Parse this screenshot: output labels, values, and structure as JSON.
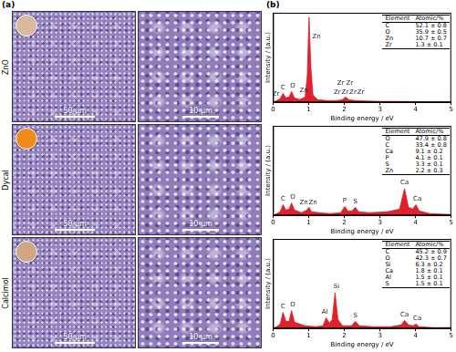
{
  "panel_labels": [
    "(a)",
    "(b)"
  ],
  "sem": [
    {
      "name": "ZnO",
      "scale_bars": [
        "50 μm",
        "10 μm"
      ]
    },
    {
      "name": "Dycal",
      "scale_bars": [
        "50 μm",
        "10 μm"
      ]
    },
    {
      "name": "Calcimol",
      "scale_bars": [
        "50 μm",
        "10 μm"
      ]
    }
  ],
  "chart_data": [
    {
      "type": "line",
      "x_label": "Binding energy / eV",
      "y_label": "Intensity / (a.u.)",
      "x": [
        0,
        0.1,
        0.2,
        0.28,
        0.36,
        0.45,
        0.52,
        0.6,
        0.75,
        0.9,
        0.96,
        1.01,
        1.06,
        1.12,
        1.25,
        1.5,
        1.8,
        1.95,
        2.04,
        2.12,
        2.3,
        2.6,
        3,
        3.5,
        4,
        4.5,
        5
      ],
      "values": [
        0,
        2,
        4,
        10,
        5,
        6,
        12,
        5,
        3,
        6,
        30,
        95,
        40,
        8,
        3,
        2,
        2,
        3,
        6,
        3,
        2,
        1.5,
        1,
        1,
        0.8,
        0.5,
        0.5
      ],
      "color": "#e0202a",
      "marker": "none",
      "grid": false,
      "tick_labels": "x",
      "xlim": [
        0,
        5
      ],
      "xticks": [
        0,
        1,
        2,
        3,
        4,
        5
      ],
      "ylim": [
        0,
        100
      ],
      "annotations": [
        {
          "text": "Zr",
          "x": 0.08,
          "y": 6
        },
        {
          "text": "C",
          "x": 0.28,
          "y": 13
        },
        {
          "text": "O",
          "x": 0.55,
          "y": 15
        },
        {
          "text": "Zn",
          "x": 0.86,
          "y": 10
        },
        {
          "text": "Zn",
          "x": 1.22,
          "y": 70
        },
        {
          "text": "Zr",
          "x": 1.9,
          "y": 18
        },
        {
          "text": "Zr",
          "x": 2.15,
          "y": 18
        },
        {
          "text": "Zr",
          "x": 1.8,
          "y": 8
        },
        {
          "text": "Zr",
          "x": 2.02,
          "y": 8
        },
        {
          "text": "Zr",
          "x": 2.24,
          "y": 8
        },
        {
          "text": "Zr",
          "x": 2.46,
          "y": 8
        }
      ],
      "table": {
        "header": [
          "Element",
          "Atomic/%"
        ],
        "rows": [
          [
            "C",
            "52.1 ± 0.8"
          ],
          [
            "O",
            "35.9 ± 0.5"
          ],
          [
            "Zn",
            "10.7 ± 0.7"
          ],
          [
            "Zr",
            "1.3 ± 0.1"
          ]
        ]
      }
    },
    {
      "type": "line",
      "x_label": "Binding energy / eV",
      "y_label": "Intensity / (a.u.)",
      "x": [
        0,
        0.1,
        0.2,
        0.28,
        0.36,
        0.45,
        0.52,
        0.6,
        0.8,
        0.95,
        1.01,
        1.08,
        1.3,
        1.6,
        1.9,
        2.01,
        2.1,
        2.22,
        2.31,
        2.4,
        2.7,
        3.2,
        3.55,
        3.69,
        3.8,
        3.92,
        4.01,
        4.1,
        4.4,
        5
      ],
      "values": [
        0,
        2,
        4,
        12,
        6,
        7,
        14,
        6,
        3,
        6,
        9,
        4,
        3,
        2,
        3,
        10,
        5,
        5,
        9,
        4,
        3,
        4,
        7,
        30,
        9,
        7,
        12,
        5,
        2,
        1
      ],
      "color": "#e0202a",
      "marker": "none",
      "grid": false,
      "tick_labels": "x",
      "xlim": [
        0,
        5
      ],
      "xticks": [
        0,
        1,
        2,
        3,
        4,
        5
      ],
      "ylim": [
        0,
        100
      ],
      "annotations": [
        {
          "text": "C",
          "x": 0.28,
          "y": 15
        },
        {
          "text": "O",
          "x": 0.55,
          "y": 17
        },
        {
          "text": "Zn",
          "x": 0.86,
          "y": 11
        },
        {
          "text": "Zn",
          "x": 1.12,
          "y": 11
        },
        {
          "text": "P",
          "x": 2.01,
          "y": 13
        },
        {
          "text": "S",
          "x": 2.31,
          "y": 12
        },
        {
          "text": "Ca",
          "x": 3.69,
          "y": 33
        },
        {
          "text": "Ca",
          "x": 4.05,
          "y": 15
        }
      ],
      "table": {
        "header": [
          "Element",
          "Atomic/%"
        ],
        "rows": [
          [
            "O",
            "47.9 ± 0.8"
          ],
          [
            "C",
            "33.4 ± 0.8"
          ],
          [
            "Ca",
            "9.1 ± 0.2"
          ],
          [
            "P",
            "4.1 ± 0.1"
          ],
          [
            "S",
            "3.3 ± 0.1"
          ],
          [
            "Zn",
            "2.2 ± 0.3"
          ]
        ]
      }
    },
    {
      "type": "line",
      "x_label": "Binding energy / eV",
      "y_label": "Intensity / (a.u.)",
      "x": [
        0,
        0.1,
        0.2,
        0.28,
        0.36,
        0.45,
        0.52,
        0.6,
        0.9,
        1.2,
        1.4,
        1.49,
        1.58,
        1.66,
        1.74,
        1.82,
        1.95,
        2.2,
        2.31,
        2.42,
        2.8,
        3.3,
        3.6,
        3.69,
        3.8,
        3.93,
        4.01,
        4.1,
        4.5,
        5
      ],
      "values": [
        0,
        2,
        5,
        18,
        8,
        8,
        20,
        7,
        3,
        2,
        3,
        12,
        6,
        10,
        40,
        10,
        3,
        3,
        8,
        3,
        2,
        2,
        4,
        9,
        4,
        3,
        5,
        2,
        1,
        1
      ],
      "color": "#e0202a",
      "marker": "none",
      "grid": false,
      "tick_labels": "x",
      "xlim": [
        0,
        5
      ],
      "xticks": [
        0,
        1,
        2,
        3,
        4,
        5
      ],
      "ylim": [
        0,
        100
      ],
      "annotations": [
        {
          "text": "C",
          "x": 0.28,
          "y": 21
        },
        {
          "text": "O",
          "x": 0.55,
          "y": 23
        },
        {
          "text": "Al",
          "x": 1.45,
          "y": 15
        },
        {
          "text": "Si",
          "x": 1.78,
          "y": 43
        },
        {
          "text": "S",
          "x": 2.31,
          "y": 11
        },
        {
          "text": "Ca",
          "x": 3.69,
          "y": 12
        },
        {
          "text": "Ca",
          "x": 4.05,
          "y": 8
        }
      ],
      "table": {
        "header": [
          "Element",
          "Atomic/%"
        ],
        "rows": [
          [
            "C",
            "45.2 ± 0.9"
          ],
          [
            "O",
            "42.3 ± 0.7"
          ],
          [
            "Si",
            "6.3 ± 0.2"
          ],
          [
            "Ca",
            "1.8 ± 0.1"
          ],
          [
            "Al",
            "1.5 ± 0.1"
          ],
          [
            "S",
            "1.5 ± 0.1"
          ]
        ]
      }
    }
  ]
}
